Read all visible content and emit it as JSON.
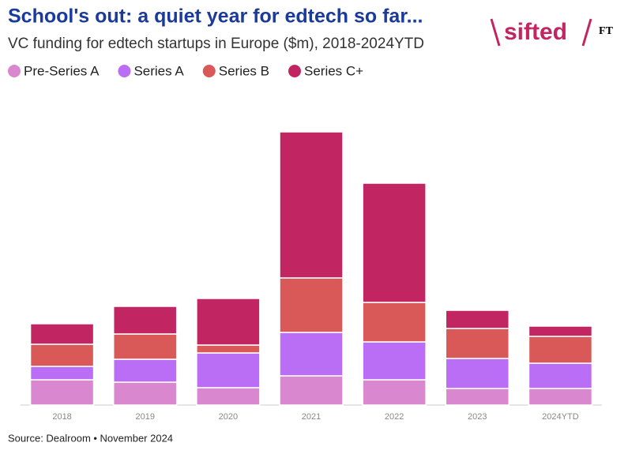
{
  "chart_data": {
    "type": "stacked-bar",
    "title": "School's out: a quiet year for edtech so far...",
    "subtitle": "VC funding for edtech startups in Europe ($m), 2018-2024YTD",
    "source": "Source: Dealroom • November 2024",
    "logo": "sifted",
    "logo_partner": "FT",
    "categories": [
      "2018",
      "2019",
      "2020",
      "2021",
      "2022",
      "2023",
      "2024YTD"
    ],
    "series": [
      {
        "name": "Pre-Series A",
        "color": "#d988d0",
        "values": [
          320,
          290,
          220,
          370,
          320,
          210,
          210
        ]
      },
      {
        "name": "Series A",
        "color": "#b96ef5",
        "values": [
          170,
          290,
          440,
          550,
          480,
          380,
          320
        ]
      },
      {
        "name": "Series B",
        "color": "#d95858",
        "values": [
          280,
          320,
          100,
          690,
          500,
          380,
          340
        ]
      },
      {
        "name": "Series C+",
        "color": "#c12562",
        "values": [
          260,
          350,
          590,
          1850,
          1510,
          230,
          130
        ]
      }
    ],
    "ylim": [
      0,
      3500
    ]
  }
}
